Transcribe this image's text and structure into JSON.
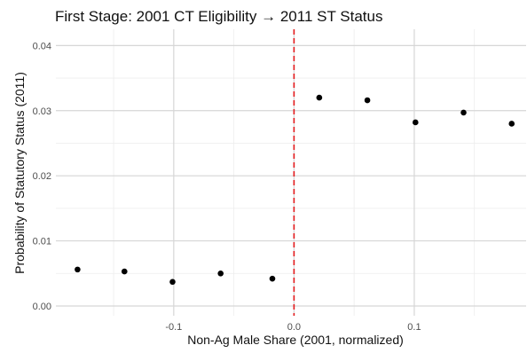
{
  "chart_data": {
    "type": "scatter",
    "title": "First Stage: 2001 CT Eligibility → 2011 ST Status",
    "xlabel": "Non-Ag Male Share (2001, normalized)",
    "ylabel": "Probability of Statutory Status (2011)",
    "xlim": [
      -0.198,
      0.193
    ],
    "ylim": [
      -0.0015,
      0.0425
    ],
    "x_ticks": [
      -0.1,
      0.0,
      0.1
    ],
    "x_tick_labels": [
      "-0.1",
      "0.0",
      "0.1"
    ],
    "x_minor_ticks": [
      -0.15,
      -0.05,
      0.05,
      0.15
    ],
    "y_ticks": [
      0.0,
      0.01,
      0.02,
      0.03,
      0.04
    ],
    "y_tick_labels": [
      "0.00",
      "0.01",
      "0.02",
      "0.03",
      "0.04"
    ],
    "y_minor_ticks": [
      0.005,
      0.015,
      0.025,
      0.035
    ],
    "grid": true,
    "cutoff": {
      "x": 0.0,
      "style": "dashed",
      "color": "#e31a1c"
    },
    "point_color": "#000000",
    "points": [
      {
        "x": -0.18,
        "y": 0.0056
      },
      {
        "x": -0.141,
        "y": 0.0053
      },
      {
        "x": -0.101,
        "y": 0.0037
      },
      {
        "x": -0.061,
        "y": 0.005
      },
      {
        "x": -0.018,
        "y": 0.0042
      },
      {
        "x": 0.021,
        "y": 0.032
      },
      {
        "x": 0.061,
        "y": 0.0316
      },
      {
        "x": 0.101,
        "y": 0.0282
      },
      {
        "x": 0.141,
        "y": 0.0297
      },
      {
        "x": 0.181,
        "y": 0.028
      }
    ]
  }
}
